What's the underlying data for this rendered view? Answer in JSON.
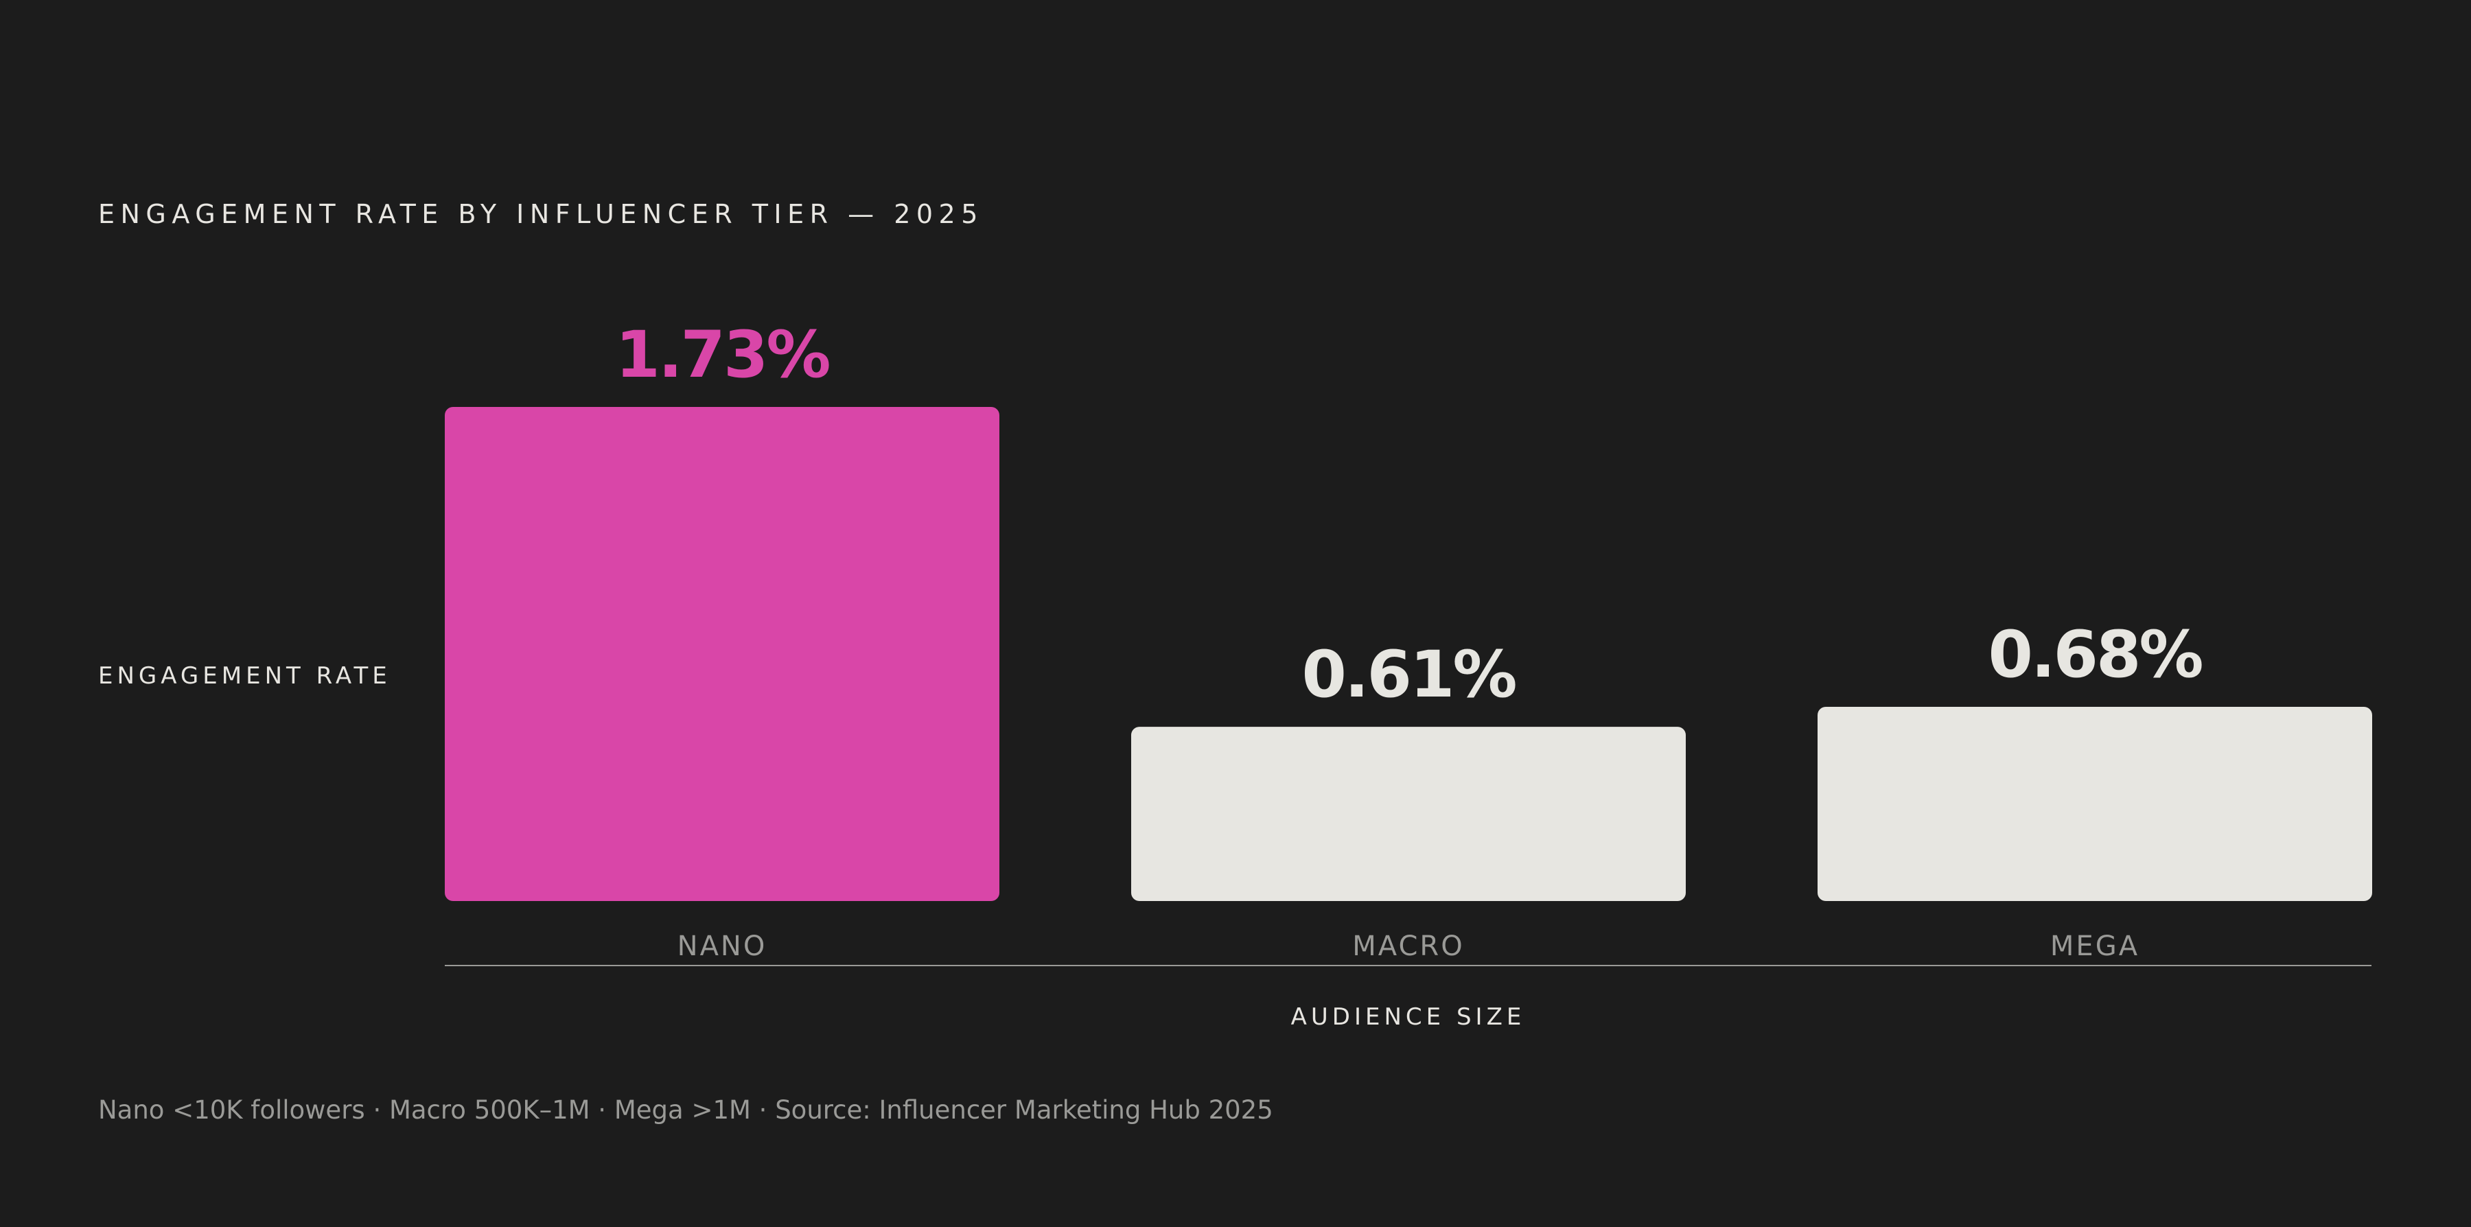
{
  "chart_data": {
    "type": "bar",
    "title": "ENGAGEMENT RATE BY INFLUENCER TIER — 2025",
    "ylabel": "ENGAGEMENT RATE",
    "xlabel": "AUDIENCE SIZE",
    "categories": [
      "NANO",
      "MACRO",
      "MEGA"
    ],
    "values": [
      1.73,
      0.61,
      0.68
    ],
    "value_labels": [
      "1.73%",
      "0.61%",
      "0.68%"
    ],
    "highlight_index": 0,
    "ylim": [
      0,
      1.73
    ],
    "grid": false,
    "colors": {
      "highlight": "#d946a8",
      "bar": "#e7e6e1",
      "baseline": "#9a9a97",
      "background": "#1c1c1c"
    }
  },
  "footnote": "Nano <10K followers · Macro 500K–1M · Mega >1M · Source: Influencer Marketing Hub 2025"
}
